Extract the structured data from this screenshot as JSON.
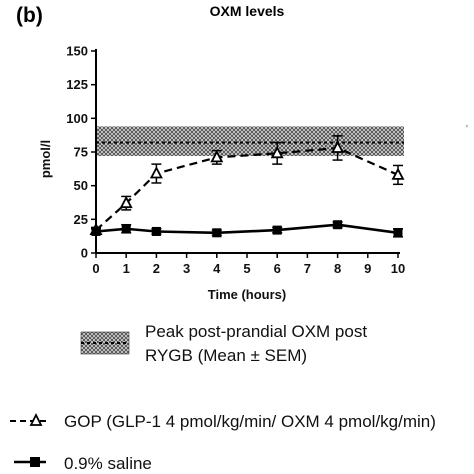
{
  "chart_data": {
    "type": "line",
    "panel_label": "(b)",
    "title": "OXM levels",
    "xlabel": "Time (hours)",
    "ylabel": "pmol/l",
    "xlim": [
      0,
      10
    ],
    "ylim": [
      0,
      150
    ],
    "x_ticks": [
      0,
      1,
      2,
      3,
      4,
      5,
      6,
      7,
      8,
      9,
      10
    ],
    "y_ticks": [
      0,
      25,
      50,
      75,
      100,
      125,
      150
    ],
    "grid": false,
    "reference_band": {
      "label_line1": "Peak post-prandial OXM post",
      "label_line2": "RYGB (Mean ± SEM)",
      "mean": 82,
      "lower": 72,
      "upper": 94
    },
    "series": [
      {
        "name": "GOP (GLP-1 4 pmol/kg/min/ OXM 4 pmol/kg/min)",
        "marker": "open-triangle",
        "line_style": "dashed",
        "x": [
          0,
          1,
          2,
          4,
          6,
          8,
          10
        ],
        "y": [
          17,
          37,
          59,
          71,
          74,
          78,
          58
        ],
        "err": [
          2,
          5,
          7,
          5,
          8,
          9,
          7
        ]
      },
      {
        "name": "0.9% saline",
        "marker": "filled-square",
        "line_style": "solid",
        "x": [
          0,
          1,
          2,
          4,
          6,
          8,
          10
        ],
        "y": [
          16,
          18,
          16,
          15,
          17,
          21,
          15
        ],
        "err": [
          2,
          3,
          2,
          2,
          2,
          2,
          3
        ]
      }
    ]
  }
}
